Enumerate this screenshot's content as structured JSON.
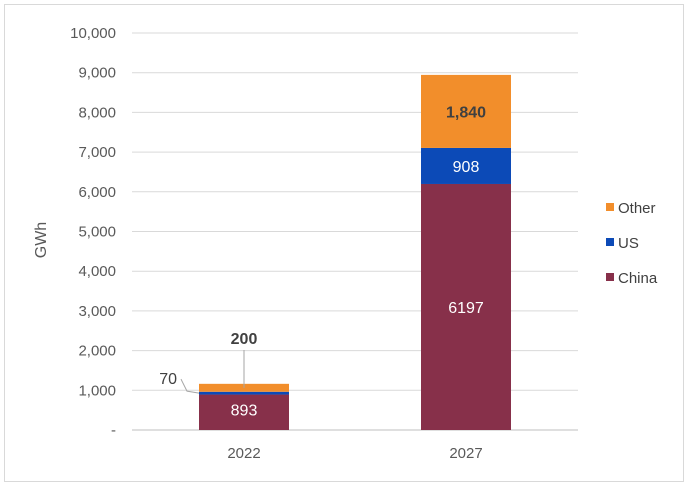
{
  "chart_data": {
    "type": "bar",
    "stacked": true,
    "categories": [
      "2022",
      "2027"
    ],
    "series": [
      {
        "name": "China",
        "color": "#87304A",
        "values": [
          893,
          6197
        ],
        "labels": [
          "893",
          "6197"
        ]
      },
      {
        "name": "US",
        "color": "#0C4AB7",
        "values": [
          70,
          908
        ],
        "labels": [
          "70",
          "908"
        ]
      },
      {
        "name": "Other",
        "color": "#F28E2B",
        "values": [
          200,
          1840
        ],
        "labels": [
          "200",
          "1,840"
        ]
      }
    ],
    "title": "",
    "xlabel": "",
    "ylabel": "GWh",
    "ylim": [
      0,
      10000
    ],
    "yticks": [
      {
        "value": 0,
        "label": "-"
      },
      {
        "value": 1000,
        "label": "1,000"
      },
      {
        "value": 2000,
        "label": "2,000"
      },
      {
        "value": 3000,
        "label": "3,000"
      },
      {
        "value": 4000,
        "label": "4,000"
      },
      {
        "value": 5000,
        "label": "5,000"
      },
      {
        "value": 6000,
        "label": "6,000"
      },
      {
        "value": 7000,
        "label": "7,000"
      },
      {
        "value": 8000,
        "label": "8,000"
      },
      {
        "value": 9000,
        "label": "9,000"
      },
      {
        "value": 10000,
        "label": "10,000"
      }
    ],
    "grid": true,
    "legend": "right"
  }
}
